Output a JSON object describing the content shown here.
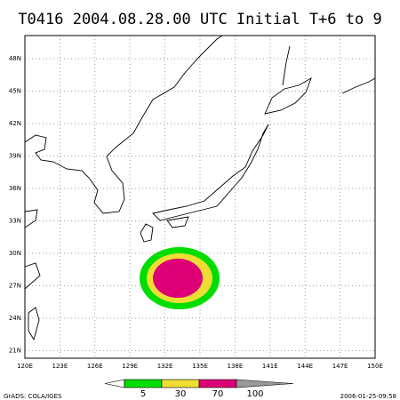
{
  "title": "T0416 2004.08.28.00 UTC Initial T+6 to 9",
  "lon_labels": [
    "120E",
    "123E",
    "126E",
    "129E",
    "132E",
    "135E",
    "138E",
    "141E",
    "144E",
    "147E",
    "150E"
  ],
  "lat_labels": [
    "48N",
    "45N",
    "42N",
    "39N",
    "36N",
    "33N",
    "30N",
    "27N",
    "24N",
    "21N"
  ],
  "colorbar": {
    "levels": [
      5,
      30,
      70,
      100
    ],
    "colors": [
      "#ffffff",
      "#00dd00",
      "#eedd33",
      "#dd0077",
      "#999999"
    ]
  },
  "footer_left": "GrADS: COLA/IGES",
  "footer_right": "2006-01-25-09:58"
}
